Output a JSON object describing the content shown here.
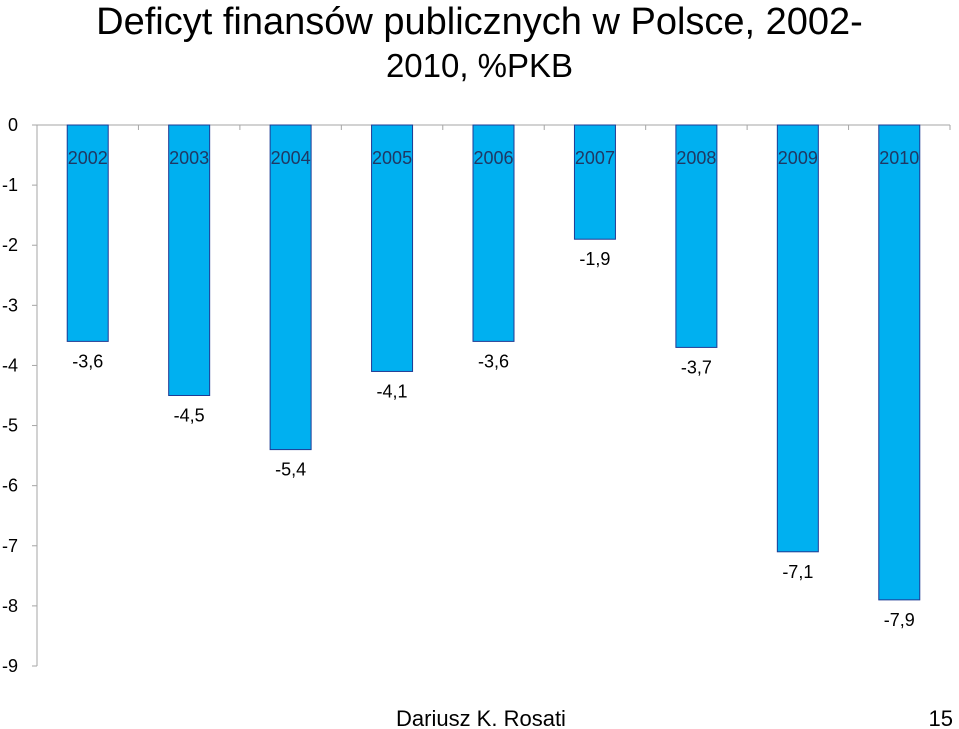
{
  "slide": {
    "title_main": "Deficyt finansów publicznych w Polsce, 2002-",
    "title_line2": "2010, %PKB",
    "author": "Dariusz K. Rosati",
    "page_number": "15"
  },
  "chart_data": {
    "type": "bar",
    "categories": [
      "2002",
      "2003",
      "2004",
      "2005",
      "2006",
      "2007",
      "2008",
      "2009",
      "2010"
    ],
    "values": [
      -3.6,
      -4.5,
      -5.4,
      -4.1,
      -3.6,
      -1.9,
      -3.7,
      -7.1,
      -7.9
    ],
    "value_labels": [
      "-3,6",
      "-4,5",
      "-5,4",
      "-4,1",
      "-3,6",
      "-1,9",
      "-3,7",
      "-7,1",
      "-7,9"
    ],
    "title": "Deficyt finansów publicznych w Polsce, 2002-2010, %PKB",
    "xlabel": "",
    "ylabel": "",
    "ylim": [
      -9,
      0
    ],
    "yticks": [
      0,
      -1,
      -2,
      -3,
      -4,
      -5,
      -6,
      -7,
      -8,
      -9
    ],
    "ytick_labels": [
      "0",
      "-1",
      "-2",
      "-3",
      "-4",
      "-5",
      "-6",
      "-7",
      "-8",
      "-9"
    ],
    "grid": false,
    "legend": "none",
    "colors": {
      "bar_fill": "#00B0F0",
      "bar_stroke": "#1F3A93",
      "axis": "#A6A6A6",
      "category_label": "#1F3864"
    }
  }
}
